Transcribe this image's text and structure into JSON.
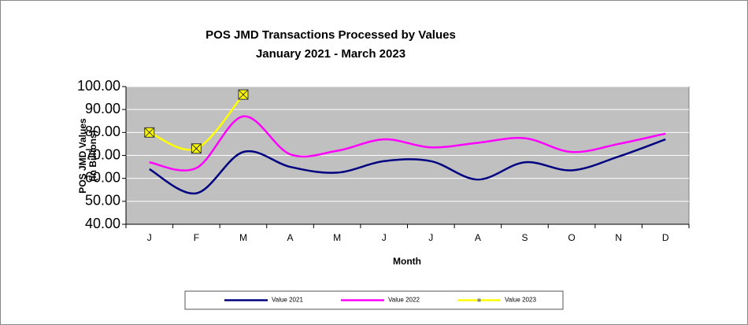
{
  "chart_data": {
    "type": "line",
    "title": "POS JMD Transactions Processed by Values",
    "subtitle": "January 2021 - March 2023",
    "ylabel": "POS JMD Values",
    "ylabel_unit": "(in Billions)",
    "xlabel": "Month",
    "categories": [
      "J",
      "F",
      "M",
      "A",
      "M",
      "J",
      "J",
      "A",
      "S",
      "O",
      "N",
      "D"
    ],
    "series": [
      {
        "name": "Value 2021",
        "color": "#000080",
        "values": [
          64,
          53.5,
          71.5,
          65,
          62.5,
          67.5,
          67.5,
          59.5,
          67,
          63.5,
          69.5,
          77
        ]
      },
      {
        "name": "Value 2022",
        "color": "#ff00ff",
        "values": [
          67,
          64.5,
          87,
          70.5,
          72,
          77,
          73.5,
          75.5,
          77.5,
          71.5,
          75,
          79.5
        ]
      },
      {
        "name": "Value 2023",
        "color": "#ffff00",
        "values": [
          80,
          73,
          96.5,
          null,
          null,
          null,
          null,
          null,
          null,
          null,
          null,
          null
        ]
      }
    ],
    "ylim": [
      40,
      100
    ],
    "yticks": [
      {
        "value": 40,
        "label": "40.00"
      },
      {
        "value": 50,
        "label": "50.00"
      },
      {
        "value": 60,
        "label": "60.00"
      },
      {
        "value": 70,
        "label": "70.00"
      },
      {
        "value": 80,
        "label": "80.00"
      },
      {
        "value": 90,
        "label": "90.00"
      },
      {
        "value": 100,
        "label": "100.00"
      }
    ],
    "grid": true,
    "legend": "bottom"
  }
}
